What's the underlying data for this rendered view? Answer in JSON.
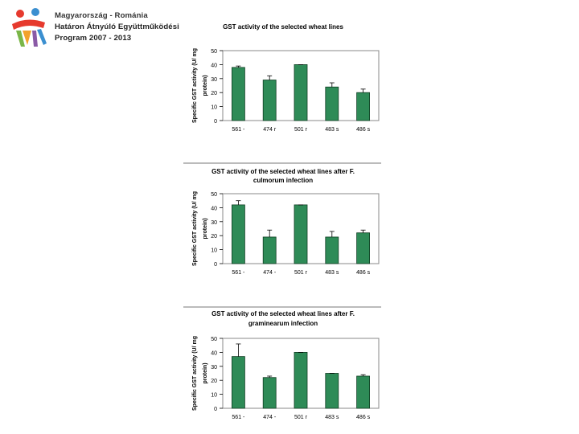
{
  "logo": {
    "lines": [
      "Magyarország - Románia",
      "Határon Átnyúló Együttműködési",
      "Program 2007 - 2013"
    ],
    "colors": {
      "red": "#e63a2e",
      "blue": "#3b8fd0",
      "orange": "#f2a22b",
      "green": "#7ab648",
      "purple": "#8a5aa6"
    }
  },
  "bar_color": "#2e8b57",
  "chart_data": [
    {
      "type": "bar",
      "title_lines": [
        "GST activity of the selected wheat lines"
      ],
      "ylabel_lines": [
        "Specific GST activity (U/ mg",
        "protein)"
      ],
      "categories": [
        "561 -",
        "474 r",
        "501 r",
        "483 s",
        "486 s"
      ],
      "values": [
        38,
        29,
        40,
        24,
        20
      ],
      "errors": [
        1,
        3,
        0,
        3,
        2.5
      ],
      "ylim": [
        0,
        50
      ],
      "yticks": [
        0,
        10,
        20,
        30,
        40,
        50
      ],
      "grid": false,
      "legend": false
    },
    {
      "type": "bar",
      "title_lines": [
        "GST activity of the selected wheat lines after F.",
        "culmorum infection"
      ],
      "ylabel_lines": [
        "Specific GST activity (U/ mg",
        "protein)"
      ],
      "categories": [
        "561 -",
        "474 -",
        "501 r",
        "483 s",
        "486 s"
      ],
      "values": [
        42,
        19,
        42,
        19,
        22
      ],
      "errors": [
        3,
        5,
        0,
        4,
        2
      ],
      "ylim": [
        0,
        50
      ],
      "yticks": [
        0,
        10,
        20,
        30,
        40,
        50
      ],
      "grid": false,
      "legend": false
    },
    {
      "type": "bar",
      "title_lines": [
        "GST activity of the selected wheat lines after F.",
        "graminearum infection"
      ],
      "ylabel_lines": [
        "Specific GST activity (U/ mg",
        "protein)"
      ],
      "categories": [
        "561 -",
        "474 -",
        "501 r",
        "483 s",
        "486 s"
      ],
      "values": [
        37,
        22,
        40,
        25,
        23
      ],
      "errors": [
        9,
        1,
        0,
        0,
        1
      ],
      "ylim": [
        0,
        50
      ],
      "yticks": [
        0,
        10,
        20,
        30,
        40,
        50
      ],
      "grid": false,
      "legend": false
    }
  ]
}
